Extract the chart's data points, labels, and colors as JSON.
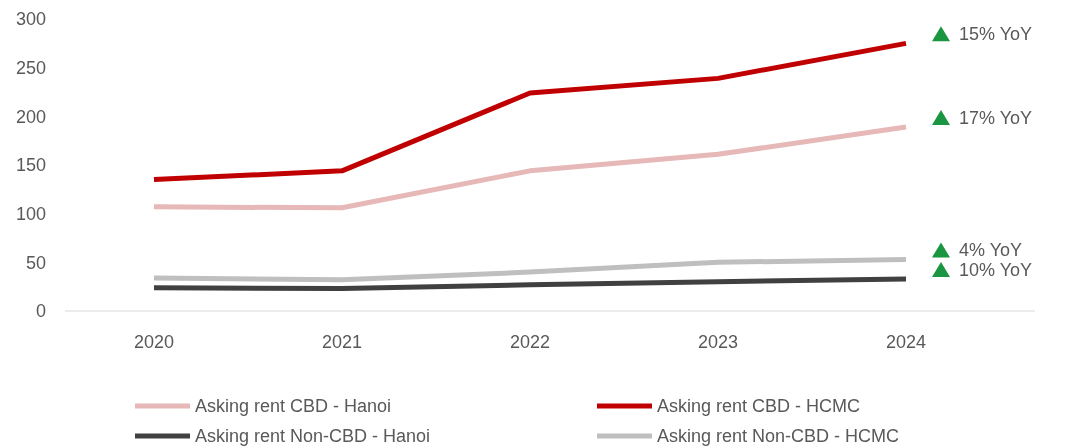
{
  "chart_data": {
    "type": "line",
    "categories": [
      "2020",
      "2021",
      "2022",
      "2023",
      "2024"
    ],
    "series": [
      {
        "name": "Asking rent CBD - Hanoi",
        "color": "#e6b8b7",
        "values": [
          107,
          106,
          144,
          161,
          189
        ]
      },
      {
        "name": "Asking rent CBD - HCMC",
        "color": "#c00000",
        "values": [
          135,
          144,
          224,
          239,
          275
        ]
      },
      {
        "name": "Asking rent Non-CBD - Hanoi",
        "color": "#404040",
        "values": [
          24,
          23,
          27,
          30,
          33
        ]
      },
      {
        "name": "Asking rent Non-CBD - HCMC",
        "color": "#bfbfbf",
        "values": [
          34,
          32,
          40,
          50,
          53
        ]
      }
    ],
    "ylim": [
      0,
      300
    ],
    "yticks": [
      0,
      50,
      100,
      150,
      200,
      250,
      300
    ],
    "grid": false,
    "legend": "bottom",
    "marker": "none",
    "line_style": "solid",
    "annotations": [
      {
        "text": "15% YoY",
        "x": "2024",
        "y": 275
      },
      {
        "text": "17% YoY",
        "x": "2024",
        "y": 189
      },
      {
        "text": "4% YoY",
        "x": "2024",
        "y": 53
      },
      {
        "text": "10% YoY",
        "x": "2024",
        "y": 33
      }
    ]
  }
}
